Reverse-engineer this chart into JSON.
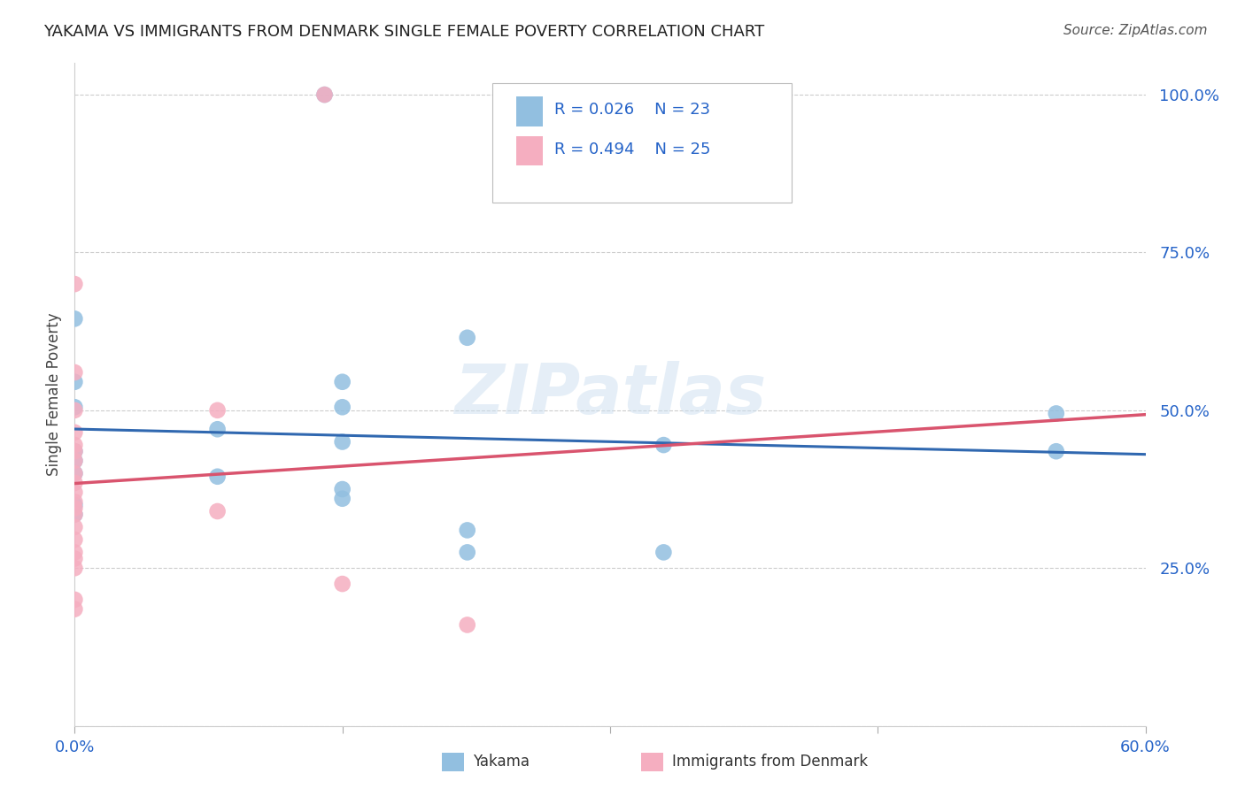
{
  "title": "YAKAMA VS IMMIGRANTS FROM DENMARK SINGLE FEMALE POVERTY CORRELATION CHART",
  "source": "Source: ZipAtlas.com",
  "ylabel": "Single Female Poverty",
  "yticks": [
    0.0,
    0.25,
    0.5,
    0.75,
    1.0
  ],
  "ytick_labels": [
    "",
    "25.0%",
    "50.0%",
    "75.0%",
    "100.0%"
  ],
  "legend_r1": "R = 0.026",
  "legend_n1": "N = 23",
  "legend_r2": "R = 0.494",
  "legend_n2": "N = 25",
  "blue_color": "#92bfe0",
  "pink_color": "#f5aec0",
  "blue_line_color": "#3068b0",
  "pink_line_color": "#d9546e",
  "label_color": "#2563c8",
  "background_color": "#ffffff",
  "watermark": "ZIPatlas",
  "yakama_points": [
    [
      0.14,
      1.0
    ],
    [
      0.0,
      0.645
    ],
    [
      0.22,
      0.615
    ],
    [
      0.0,
      0.545
    ],
    [
      0.15,
      0.545
    ],
    [
      0.0,
      0.505
    ],
    [
      0.15,
      0.505
    ],
    [
      0.08,
      0.47
    ],
    [
      0.15,
      0.45
    ],
    [
      0.0,
      0.435
    ],
    [
      0.0,
      0.42
    ],
    [
      0.0,
      0.4
    ],
    [
      0.08,
      0.395
    ],
    [
      0.15,
      0.375
    ],
    [
      0.15,
      0.36
    ],
    [
      0.0,
      0.35
    ],
    [
      0.0,
      0.335
    ],
    [
      0.22,
      0.31
    ],
    [
      0.22,
      0.275
    ],
    [
      0.33,
      0.275
    ],
    [
      0.33,
      0.445
    ],
    [
      0.55,
      0.495
    ],
    [
      0.55,
      0.435
    ]
  ],
  "denmark_points": [
    [
      0.14,
      1.0
    ],
    [
      0.0,
      0.7
    ],
    [
      0.0,
      0.56
    ],
    [
      0.0,
      0.5
    ],
    [
      0.08,
      0.5
    ],
    [
      0.0,
      0.465
    ],
    [
      0.0,
      0.445
    ],
    [
      0.0,
      0.435
    ],
    [
      0.0,
      0.42
    ],
    [
      0.0,
      0.4
    ],
    [
      0.0,
      0.385
    ],
    [
      0.0,
      0.37
    ],
    [
      0.0,
      0.355
    ],
    [
      0.0,
      0.345
    ],
    [
      0.0,
      0.335
    ],
    [
      0.0,
      0.315
    ],
    [
      0.0,
      0.295
    ],
    [
      0.0,
      0.275
    ],
    [
      0.0,
      0.265
    ],
    [
      0.0,
      0.25
    ],
    [
      0.08,
      0.34
    ],
    [
      0.15,
      0.225
    ],
    [
      0.0,
      0.2
    ],
    [
      0.0,
      0.185
    ],
    [
      0.22,
      0.16
    ]
  ],
  "xlim": [
    0.0,
    0.6
  ],
  "ylim": [
    0.0,
    1.05
  ],
  "xticks": [
    0.0,
    0.15,
    0.3,
    0.45,
    0.6
  ],
  "xtick_labels": [
    "0.0%",
    "",
    "",
    "",
    "60.0%"
  ]
}
